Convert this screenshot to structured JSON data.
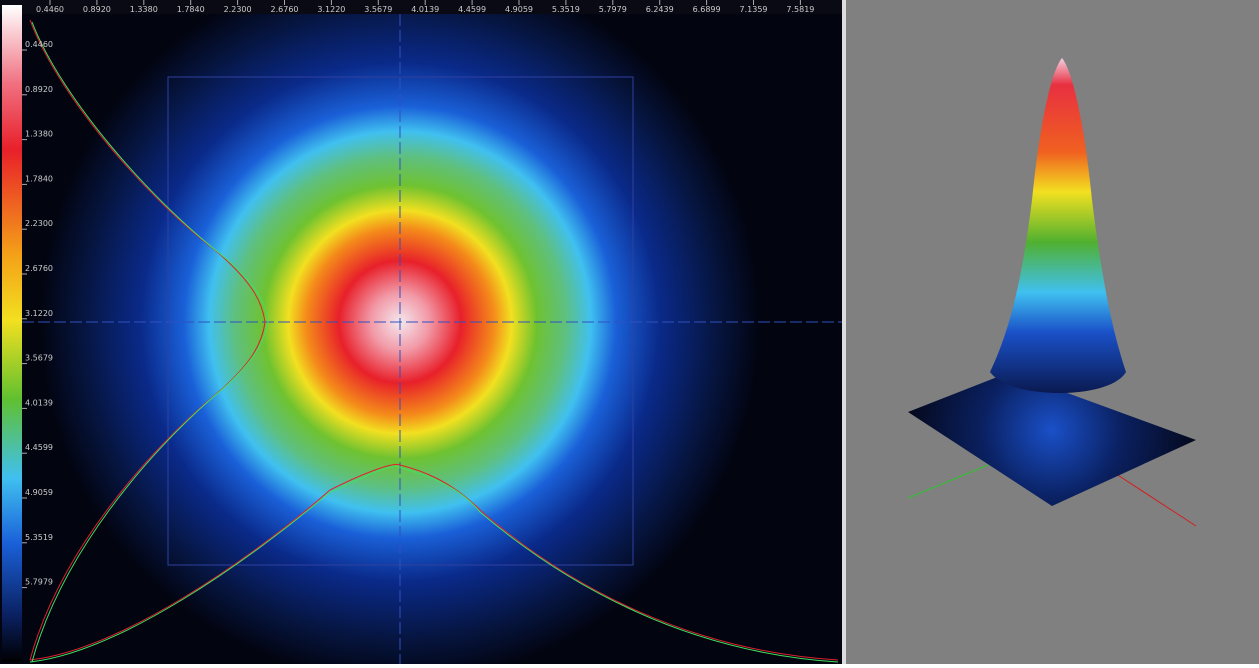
{
  "top_ruler": {
    "labels": [
      "0.4460",
      "0.8920",
      "1.3380",
      "1.7840",
      "2.2300",
      "2.6760",
      "3.1220",
      "3.5679",
      "4.0139",
      "4.4599",
      "4.9059",
      "5.3519",
      "5.7979",
      "6.2439",
      "6.6899",
      "7.1359",
      "7.5819"
    ]
  },
  "left_ruler": {
    "labels": [
      "0.4460",
      "0.8920",
      "1.3380",
      "1.7840",
      "2.2300",
      "2.6760",
      "3.1220",
      "3.5679",
      "4.0139",
      "4.4599",
      "4.9059",
      "5.3519",
      "5.7979"
    ]
  }
}
